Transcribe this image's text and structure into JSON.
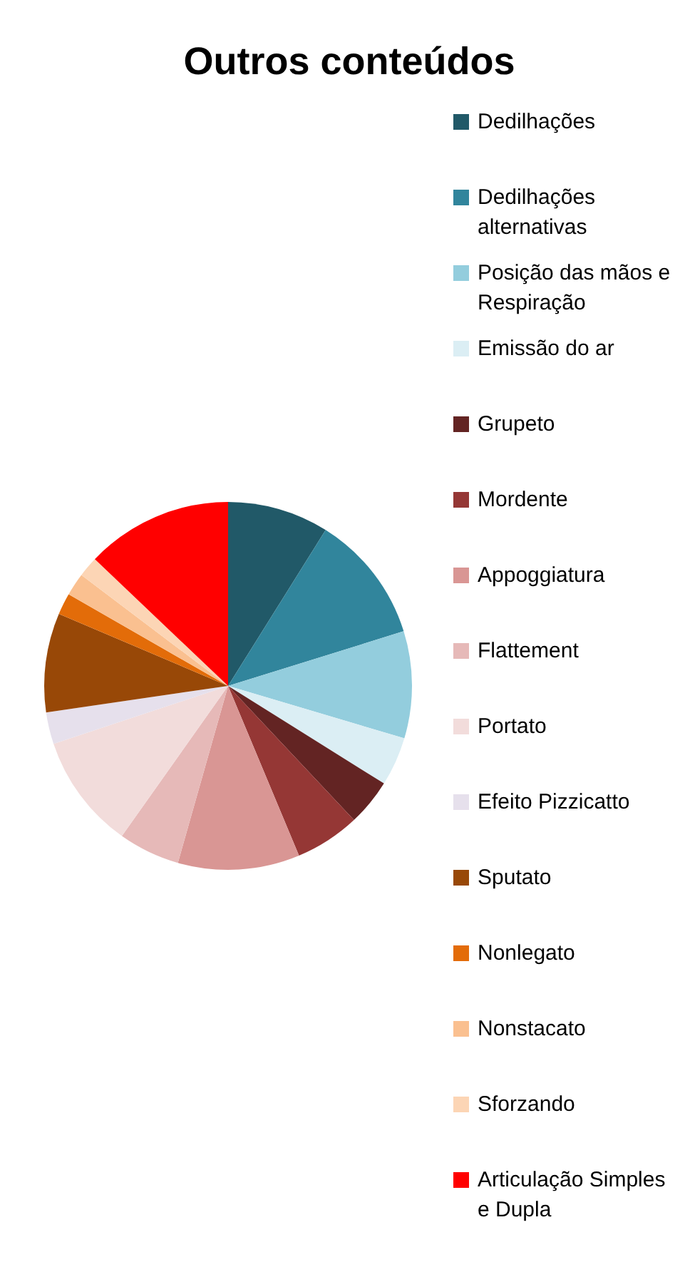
{
  "chart_data": {
    "type": "pie",
    "title": "Outros conteúdos",
    "legend": "right",
    "categories": [
      "Dedilhações",
      "Dedilhações alternativas",
      "Posição das mãos e Respiração",
      "Emissão do ar",
      "Grupeto",
      "Mordente",
      "Appoggiatura",
      "Flattement",
      "Portato",
      "Efeito Pizzicatto",
      "Sputato",
      "Nonlegato",
      "Nonstacato",
      "Sforzando",
      "Articulação Simples e Dupla"
    ],
    "values": [
      8.9,
      11.3,
      9.4,
      4.3,
      4.1,
      5.7,
      10.7,
      5.4,
      10.1,
      2.8,
      8.7,
      1.9,
      2.0,
      1.8,
      12.9
    ],
    "colors": [
      "#215968",
      "#31859c",
      "#93cddd",
      "#dbeef4",
      "#632423",
      "#953735",
      "#d99694",
      "#e6b9b8",
      "#f2dcdb",
      "#e6e0ec",
      "#984807",
      "#e36c09",
      "#fac090",
      "#fcd5b5",
      "#ff0000"
    ]
  }
}
